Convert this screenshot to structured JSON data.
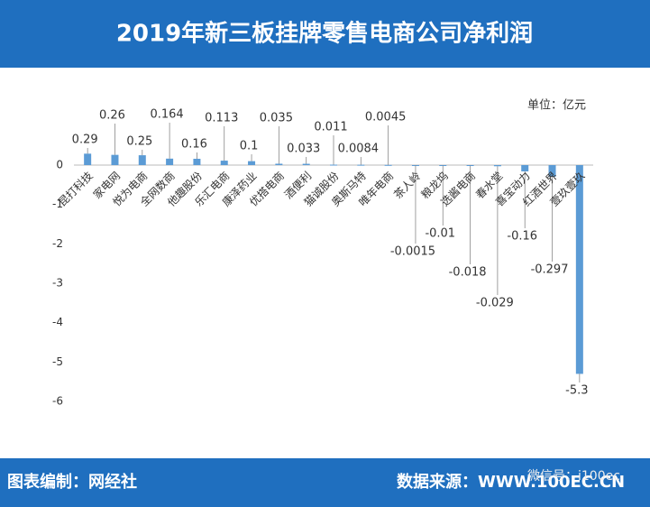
{
  "chart_data": {
    "type": "bar",
    "title": "2019年新三板挂牌零售电商公司净利润",
    "unit_label": "单位：亿元",
    "categories": [
      "昆打科技",
      "家电网",
      "悦为电商",
      "全网数商",
      "他趣股份",
      "乐汇电商",
      "康泽药业",
      "优搭电商",
      "酒便利",
      "猫诚股份",
      "奥斯马特",
      "唯年电商",
      "茶人岭",
      "粮龙坞",
      "选酱电商",
      "春水堂",
      "喜宝动力",
      "红酒世界",
      "壹玖壹玖"
    ],
    "values": [
      0.29,
      0.26,
      0.25,
      0.164,
      0.16,
      0.113,
      0.1,
      0.035,
      0.033,
      0.011,
      0.0084,
      0.0045,
      -0.0015,
      -0.01,
      -0.018,
      -0.029,
      -0.16,
      -0.297,
      -5.3
    ],
    "color": "#5b9bd5",
    "ylim": [
      -6,
      0
    ],
    "yticks": [
      0,
      -1,
      -2,
      -3,
      -4,
      -5,
      -6
    ],
    "grid": false
  },
  "footer": {
    "left": "图表编制：网经社",
    "right": "数据来源：WWW.100EC.CN",
    "wechat": "微信号：i100ec"
  }
}
